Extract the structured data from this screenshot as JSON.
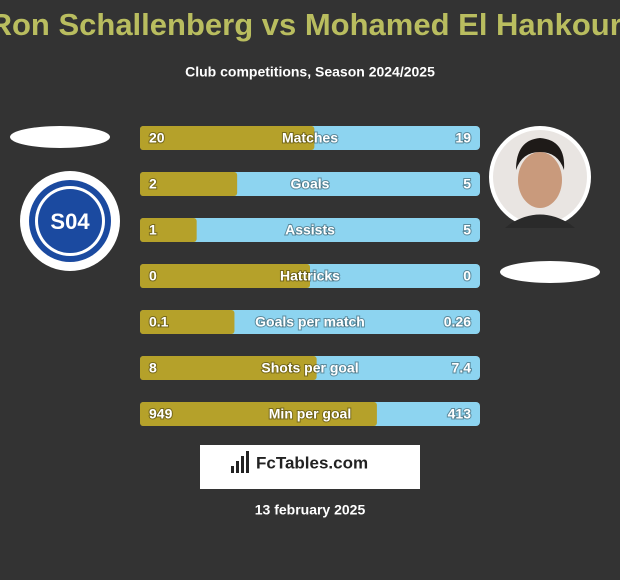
{
  "header": {
    "title": "Ron Schallenberg vs Mohamed El Hankouri",
    "subtitle": "Club competitions, Season 2024/2025"
  },
  "left_logo_text": "S04",
  "rows": [
    {
      "label": "Matches",
      "left": 20,
      "right": 19
    },
    {
      "label": "Goals",
      "left": 2,
      "right": 5
    },
    {
      "label": "Assists",
      "left": 1,
      "right": 5
    },
    {
      "label": "Hattricks",
      "left": 0,
      "right": 0
    },
    {
      "label": "Goals per match",
      "left": 0.1,
      "right": 0.26
    },
    {
      "label": "Shots per goal",
      "left": 8,
      "right": 7.4
    },
    {
      "label": "Min per goal",
      "left": 949,
      "right": 413
    }
  ],
  "footer": {
    "brand": "FcTables.com",
    "date": "13 february 2025"
  }
}
